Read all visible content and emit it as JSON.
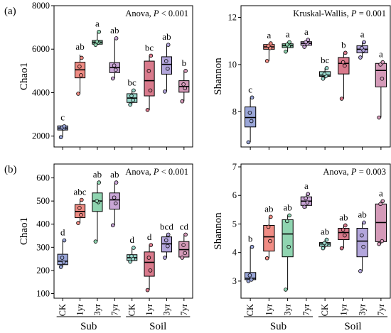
{
  "panel_labels": [
    "(a)",
    "(b)"
  ],
  "group_labels": [
    "Sub",
    "Soil"
  ],
  "colors": {
    "CK_sub": "#9aa6d8",
    "1yr_sub": "#f08c84",
    "3yr_sub": "#8fd4b0",
    "7yr_sub": "#c9a6d6",
    "CK_soil": "#9ad8cc",
    "1yr_soil": "#d97a8c",
    "3yr_soil": "#b3a6dc",
    "7yr_soil": "#d49ab8"
  },
  "chart_data": [
    {
      "id": "a-left",
      "type": "box",
      "panel": "(a)",
      "stat": {
        "test": "Anova, ",
        "p": "P",
        "rest": " < 0.001"
      },
      "ylabel": "Chao1",
      "ylim": [
        1500,
        8000
      ],
      "yticks": [
        2000,
        4000,
        6000,
        8000
      ],
      "categories": [
        "CK",
        "1yr",
        "3yr",
        "7yr",
        "CK",
        "1yr",
        "3yr",
        "7yr"
      ],
      "boxes": [
        {
          "min": 1950,
          "q1": 2280,
          "median": 2370,
          "q3": 2470,
          "max": 2500,
          "letter": "c",
          "points": [
            1950,
            2350,
            2400,
            2450
          ]
        },
        {
          "min": 3950,
          "q1": 4680,
          "median": 5050,
          "q3": 5400,
          "max": 5750,
          "letter": "ab",
          "points": [
            3950,
            4800,
            5200,
            5600
          ]
        },
        {
          "min": 6200,
          "q1": 6230,
          "median": 6320,
          "q3": 6400,
          "max": 6800,
          "letter": "a",
          "points": [
            6200,
            6300,
            6350,
            6800
          ]
        },
        {
          "min": 4650,
          "q1": 4920,
          "median": 5150,
          "q3": 5380,
          "max": 6500,
          "letter": "ab",
          "points": [
            4650,
            5050,
            5250,
            6500
          ]
        },
        {
          "min": 3450,
          "q1": 3550,
          "median": 3750,
          "q3": 3950,
          "max": 4100,
          "letter": "bc",
          "points": [
            3450,
            3650,
            3850,
            4100
          ]
        },
        {
          "min": 3200,
          "q1": 3850,
          "median": 4550,
          "q3": 5450,
          "max": 5700,
          "letter": "bc",
          "points": [
            3200,
            4100,
            5000,
            5700
          ]
        },
        {
          "min": 4050,
          "q1": 4850,
          "median": 5300,
          "q3": 5650,
          "max": 6200,
          "letter": "ab",
          "points": [
            4050,
            5100,
            5450,
            6200
          ]
        },
        {
          "min": 3600,
          "q1": 4020,
          "median": 4280,
          "q3": 4550,
          "max": 5000,
          "letter": "b",
          "points": [
            3600,
            4200,
            4380,
            5000
          ]
        }
      ]
    },
    {
      "id": "a-right",
      "type": "box",
      "panel": "",
      "stat": {
        "test": "Kruskal-Wallis, ",
        "p": "P",
        "rest": " = 0.001"
      },
      "ylabel": "Shannon",
      "ylim": [
        6.5,
        12.5
      ],
      "yticks": [
        8,
        10,
        12
      ],
      "categories": [
        "CK",
        "1yr",
        "3yr",
        "7yr",
        "CK",
        "1yr",
        "3yr",
        "7yr"
      ],
      "boxes": [
        {
          "min": 6.7,
          "q1": 7.35,
          "median": 7.75,
          "q3": 8.2,
          "max": 8.6,
          "letter": "c",
          "points": [
            6.7,
            7.6,
            7.95,
            8.6
          ]
        },
        {
          "min": 10.15,
          "q1": 10.65,
          "median": 10.75,
          "q3": 10.85,
          "max": 10.9,
          "letter": "a",
          "points": [
            10.15,
            10.7,
            10.8,
            10.9
          ]
        },
        {
          "min": 10.55,
          "q1": 10.72,
          "median": 10.8,
          "q3": 10.88,
          "max": 10.95,
          "letter": "a",
          "points": [
            10.55,
            10.78,
            10.85,
            10.95
          ]
        },
        {
          "min": 10.75,
          "q1": 10.82,
          "median": 10.9,
          "q3": 10.97,
          "max": 11.05,
          "letter": "a",
          "points": [
            10.75,
            10.88,
            10.95,
            11.05
          ]
        },
        {
          "min": 9.4,
          "q1": 9.5,
          "median": 9.55,
          "q3": 9.7,
          "max": 9.85,
          "letter": "bc",
          "points": [
            9.4,
            9.52,
            9.6,
            9.85
          ]
        },
        {
          "min": 8.55,
          "q1": 9.6,
          "median": 10.05,
          "q3": 10.3,
          "max": 10.5,
          "letter": "b",
          "points": [
            8.55,
            9.95,
            10.1,
            10.5
          ]
        },
        {
          "min": 10.3,
          "q1": 10.5,
          "median": 10.65,
          "q3": 10.8,
          "max": 10.95,
          "letter": "a",
          "points": [
            10.3,
            10.6,
            10.7,
            10.95
          ]
        },
        {
          "min": 7.75,
          "q1": 9.05,
          "median": 9.75,
          "q3": 10.05,
          "max": 10.1,
          "letter": "a",
          "points": [
            7.75,
            9.4,
            10.0,
            10.1
          ]
        }
      ]
    },
    {
      "id": "b-left",
      "type": "box",
      "panel": "(b)",
      "stat": {
        "test": "Anova, ",
        "p": "P",
        "rest": " < 0.001"
      },
      "ylabel": "Chao1",
      "ylim": [
        80,
        660
      ],
      "yticks": [
        100,
        200,
        300,
        400,
        500,
        600
      ],
      "categories": [
        "CK",
        "1yr",
        "3yr",
        "7yr",
        "CK",
        "1yr",
        "3yr",
        "7yr"
      ],
      "boxes": [
        {
          "min": 215,
          "q1": 225,
          "median": 240,
          "q3": 270,
          "max": 330,
          "letter": "d",
          "points": [
            215,
            235,
            255,
            330
          ]
        },
        {
          "min": 405,
          "q1": 428,
          "median": 455,
          "q3": 485,
          "max": 505,
          "letter": "abc",
          "points": [
            405,
            440,
            470,
            505
          ]
        },
        {
          "min": 325,
          "q1": 455,
          "median": 500,
          "q3": 535,
          "max": 580,
          "letter": "ab",
          "points": [
            325,
            495,
            500,
            580
          ]
        },
        {
          "min": 395,
          "q1": 465,
          "median": 505,
          "q3": 535,
          "max": 580,
          "letter": "ab",
          "points": [
            395,
            490,
            515,
            580
          ]
        },
        {
          "min": 238,
          "q1": 243,
          "median": 255,
          "q3": 268,
          "max": 298,
          "letter": "d",
          "points": [
            238,
            250,
            262,
            298
          ]
        },
        {
          "min": 115,
          "q1": 175,
          "median": 235,
          "q3": 280,
          "max": 310,
          "letter": "d",
          "points": [
            115,
            200,
            255,
            310
          ]
        },
        {
          "min": 255,
          "q1": 280,
          "median": 315,
          "q3": 345,
          "max": 355,
          "letter": "bcd",
          "points": [
            255,
            305,
            330,
            355
          ]
        },
        {
          "min": 255,
          "q1": 258,
          "median": 290,
          "q3": 325,
          "max": 355,
          "letter": "cd",
          "points": [
            255,
            275,
            310,
            355
          ]
        }
      ]
    },
    {
      "id": "b-right",
      "type": "box",
      "panel": "",
      "stat": {
        "test": "Anova, ",
        "p": "P",
        "rest": " = 0.003"
      },
      "ylabel": "Shannon",
      "ylim": [
        2.4,
        7.1
      ],
      "yticks": [
        3,
        4,
        5,
        6,
        7
      ],
      "categories": [
        "CK",
        "1yr",
        "3yr",
        "7yr",
        "CK",
        "1yr",
        "3yr",
        "7yr"
      ],
      "boxes": [
        {
          "min": 3.0,
          "q1": 3.05,
          "median": 3.1,
          "q3": 3.3,
          "max": 4.2,
          "letter": "b",
          "points": [
            3.0,
            3.05,
            3.2,
            4.2
          ]
        },
        {
          "min": 3.8,
          "q1": 4.05,
          "median": 4.55,
          "q3": 4.95,
          "max": 5.25,
          "letter": "ab",
          "points": [
            3.8,
            4.4,
            4.9,
            5.25
          ]
        },
        {
          "min": 2.7,
          "q1": 3.85,
          "median": 4.65,
          "q3": 5.15,
          "max": 5.3,
          "letter": "ab",
          "points": [
            2.7,
            4.2,
            5.1,
            5.3
          ]
        },
        {
          "min": 5.55,
          "q1": 5.65,
          "median": 5.8,
          "q3": 5.95,
          "max": 6.05,
          "letter": "a",
          "points": [
            5.6,
            5.75,
            5.9,
            6.05
          ]
        },
        {
          "min": 4.15,
          "q1": 4.22,
          "median": 4.3,
          "q3": 4.35,
          "max": 4.45,
          "letter": "ab",
          "points": [
            4.15,
            4.28,
            4.33,
            4.45
          ]
        },
        {
          "min": 4.15,
          "q1": 4.45,
          "median": 4.7,
          "q3": 4.85,
          "max": 4.95,
          "letter": "ab",
          "points": [
            4.15,
            4.6,
            4.8,
            4.95
          ]
        },
        {
          "min": 3.35,
          "q1": 3.85,
          "median": 4.4,
          "q3": 4.85,
          "max": 5.05,
          "letter": "ab",
          "points": [
            3.35,
            4.2,
            4.6,
            5.05
          ]
        },
        {
          "min": 4.3,
          "q1": 4.38,
          "median": 5.05,
          "q3": 5.7,
          "max": 5.8,
          "letter": "a",
          "points": [
            4.3,
            4.4,
            5.7,
            5.8
          ]
        }
      ]
    }
  ]
}
